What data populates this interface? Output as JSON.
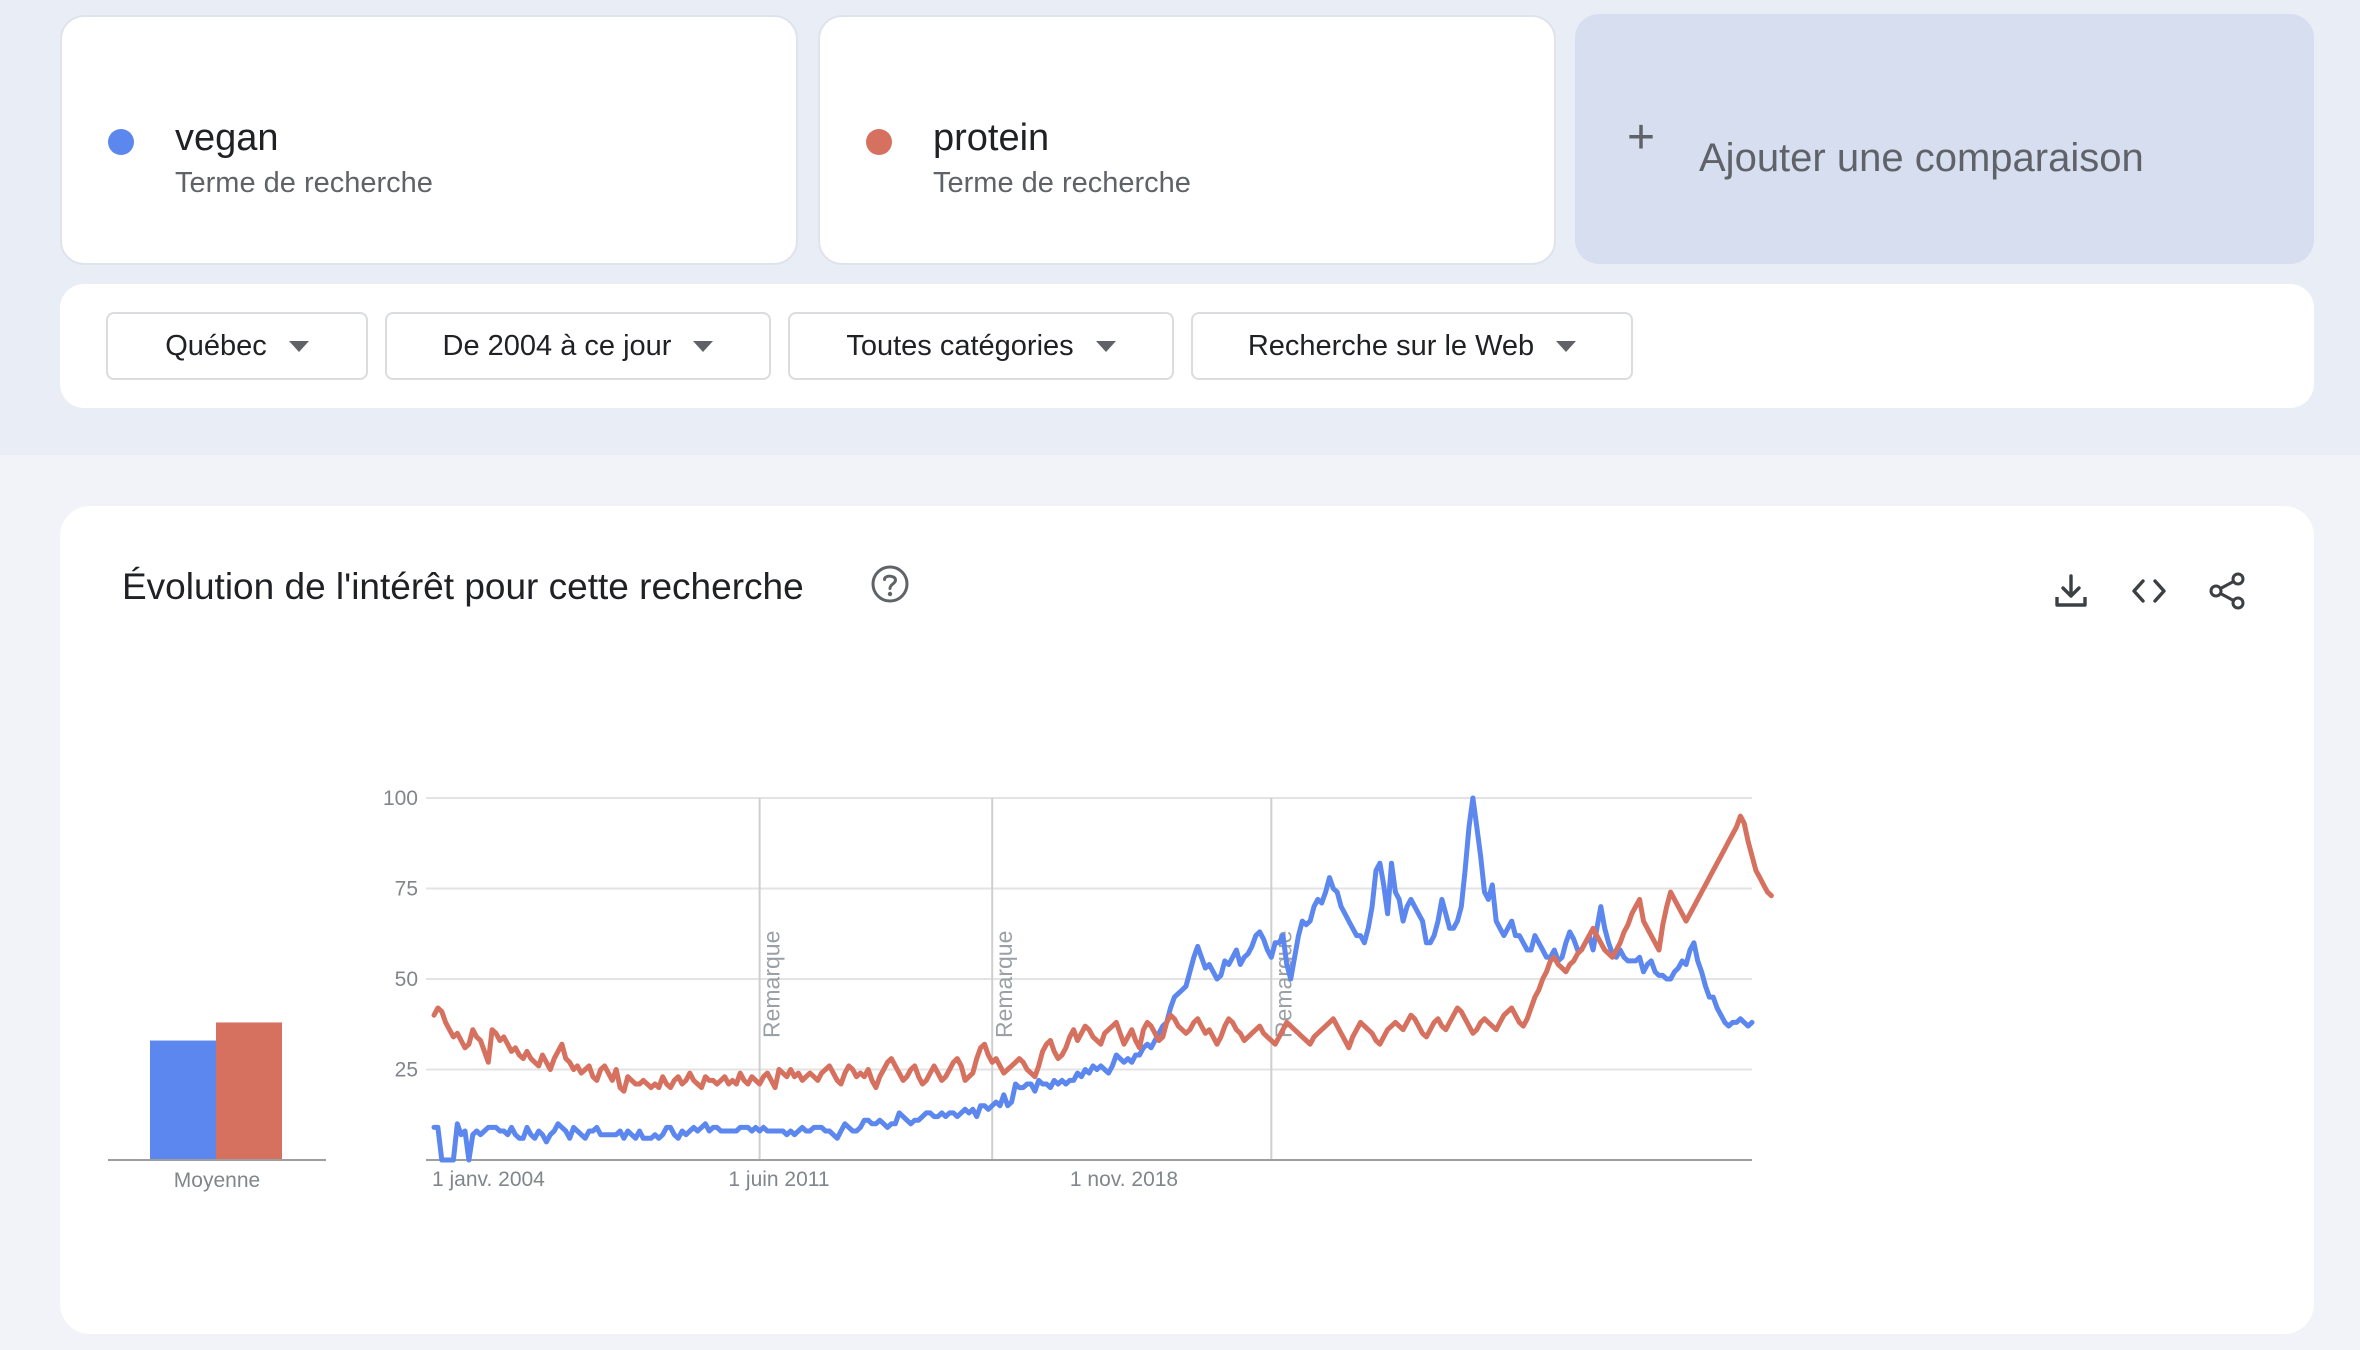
{
  "terms": [
    {
      "name": "vegan",
      "subtitle": "Terme de recherche",
      "color": "#5b87ef"
    },
    {
      "name": "protein",
      "subtitle": "Terme de recherche",
      "color": "#d6705f"
    }
  ],
  "add_comparison": {
    "icon": "plus-icon",
    "label": "Ajouter une comparaison"
  },
  "filters": [
    {
      "label": "Québec"
    },
    {
      "label": "De 2004 à ce jour"
    },
    {
      "label": "Toutes catégories"
    },
    {
      "label": "Recherche sur le Web"
    }
  ],
  "panel": {
    "title": "Évolution de l'intérêt pour cette recherche",
    "icons": [
      "help-icon",
      "download-icon",
      "embed-icon",
      "share-icon"
    ]
  },
  "chart_data": [
    {
      "type": "bar",
      "categories": [
        "Moyenne"
      ],
      "series": [
        {
          "name": "vegan",
          "values": [
            33
          ]
        },
        {
          "name": "protein",
          "values": [
            38
          ]
        }
      ],
      "ylim": [
        0,
        100
      ]
    },
    {
      "type": "line",
      "x_start": "2004-01",
      "x_step": "month",
      "x_tick_labels": [
        "1 janv. 2004",
        "1 juin 2011",
        "1 nov. 2018"
      ],
      "y_tick_labels": [
        "25",
        "50",
        "75",
        "100"
      ],
      "ylim": [
        0,
        100
      ],
      "grid": true,
      "annotations": [
        {
          "label": "Remarque",
          "date": "2011-01"
        },
        {
          "label": "Remarque",
          "date": "2016-01"
        },
        {
          "label": "Remarque",
          "date": "2022-01"
        }
      ],
      "series": [
        {
          "name": "vegan",
          "color": "#5b87ef",
          "values": [
            9,
            9,
            0,
            0,
            0,
            0,
            10,
            7,
            8,
            0,
            7,
            8,
            7,
            8,
            9,
            9,
            9,
            8,
            8,
            7,
            9,
            7,
            6,
            6,
            9,
            7,
            6,
            8,
            7,
            5,
            7,
            8,
            10,
            9,
            8,
            6,
            9,
            8,
            7,
            6,
            8,
            8,
            9,
            7,
            7,
            7,
            7,
            7,
            8,
            6,
            8,
            7,
            6,
            8,
            6,
            6,
            6,
            7,
            6,
            7,
            9,
            9,
            7,
            6,
            8,
            7,
            8,
            9,
            8,
            9,
            10,
            8,
            9,
            9,
            8,
            8,
            8,
            8,
            8,
            9,
            9,
            9,
            8,
            9,
            8,
            9,
            8,
            8,
            8,
            8,
            8,
            7,
            8,
            7,
            8,
            9,
            8,
            8,
            9,
            9,
            9,
            8,
            8,
            7,
            6,
            8,
            10,
            9,
            8,
            8,
            9,
            11,
            11,
            10,
            10,
            11,
            10,
            9,
            10,
            10,
            13,
            12,
            11,
            10,
            11,
            11,
            12,
            13,
            13,
            12,
            12,
            13,
            12,
            13,
            13,
            12,
            13,
            14,
            13,
            14,
            12,
            15,
            15,
            14,
            15,
            16,
            15,
            18,
            15,
            16,
            21,
            20,
            20,
            21,
            21,
            19,
            22,
            21,
            21,
            20,
            22,
            21,
            22,
            21,
            22,
            22,
            24,
            23,
            25,
            24,
            26,
            25,
            26,
            25,
            24,
            26,
            29,
            28,
            27,
            28,
            27,
            29,
            29,
            31,
            32,
            31,
            33,
            35,
            37,
            38,
            42,
            45,
            46,
            47,
            48,
            52,
            56,
            59,
            56,
            53,
            54,
            52,
            50,
            51,
            55,
            54,
            56,
            58,
            54,
            56,
            57,
            59,
            62,
            63,
            61,
            58,
            56,
            60,
            60,
            62,
            54,
            50,
            56,
            62,
            66,
            65,
            66,
            70,
            72,
            71,
            74,
            78,
            75,
            74,
            70,
            68,
            66,
            64,
            62,
            62,
            60,
            64,
            70,
            80,
            82,
            76,
            68,
            82,
            74,
            72,
            66,
            70,
            72,
            70,
            68,
            66,
            60,
            60,
            62,
            66,
            72,
            68,
            64,
            64,
            66,
            70,
            80,
            92,
            100,
            92,
            84,
            74,
            72,
            76,
            66,
            64,
            62,
            64,
            66,
            62,
            62,
            60,
            58,
            58,
            62,
            60,
            58,
            56,
            56,
            58,
            55,
            56,
            60,
            63,
            61,
            58,
            58,
            60,
            62,
            58,
            64,
            70,
            64,
            60,
            57,
            56,
            58,
            56,
            55,
            55,
            55,
            56,
            52,
            54,
            55,
            52,
            51,
            51,
            50,
            50,
            52,
            53,
            55,
            54,
            58,
            60,
            55,
            52,
            48,
            45,
            45,
            42,
            40,
            38,
            37,
            38,
            38,
            39,
            38,
            37,
            38
          ]
        },
        {
          "name": "protein",
          "color": "#d6705f",
          "values": [
            40,
            42,
            41,
            38,
            36,
            34,
            35,
            33,
            31,
            32,
            36,
            34,
            33,
            30,
            27,
            36,
            35,
            33,
            34,
            32,
            30,
            31,
            29,
            28,
            30,
            28,
            27,
            26,
            29,
            27,
            25,
            28,
            30,
            32,
            28,
            27,
            25,
            26,
            24,
            25,
            26,
            23,
            22,
            25,
            26,
            24,
            22,
            25,
            20,
            19,
            23,
            22,
            21,
            21,
            22,
            21,
            20,
            21,
            20,
            23,
            21,
            20,
            22,
            23,
            21,
            22,
            24,
            22,
            21,
            20,
            23,
            22,
            22,
            21,
            22,
            23,
            21,
            22,
            21,
            24,
            22,
            21,
            23,
            22,
            21,
            23,
            24,
            22,
            20,
            25,
            24,
            23,
            25,
            23,
            24,
            22,
            23,
            24,
            23,
            22,
            24,
            25,
            26,
            24,
            22,
            21,
            24,
            26,
            25,
            23,
            24,
            23,
            25,
            22,
            20,
            23,
            25,
            27,
            28,
            26,
            24,
            22,
            23,
            25,
            26,
            23,
            21,
            22,
            24,
            26,
            24,
            22,
            23,
            25,
            27,
            28,
            26,
            22,
            23,
            24,
            28,
            31,
            32,
            29,
            27,
            28,
            26,
            24,
            25,
            26,
            27,
            28,
            27,
            25,
            24,
            23,
            26,
            30,
            32,
            33,
            30,
            28,
            29,
            31,
            34,
            36,
            33,
            35,
            37,
            36,
            34,
            33,
            32,
            35,
            36,
            37,
            38,
            35,
            32,
            34,
            36,
            33,
            31,
            36,
            38,
            37,
            35,
            33,
            34,
            38,
            40,
            39,
            37,
            36,
            35,
            36,
            38,
            39,
            37,
            35,
            36,
            34,
            32,
            34,
            37,
            39,
            38,
            36,
            35,
            33,
            34,
            35,
            36,
            37,
            35,
            34,
            33,
            32,
            34,
            36,
            38,
            37,
            36,
            35,
            34,
            33,
            32,
            34,
            35,
            36,
            37,
            38,
            39,
            37,
            35,
            33,
            31,
            34,
            36,
            38,
            37,
            36,
            35,
            33,
            32,
            34,
            36,
            37,
            38,
            37,
            36,
            38,
            40,
            39,
            37,
            35,
            34,
            36,
            38,
            39,
            37,
            36,
            38,
            40,
            42,
            41,
            39,
            37,
            35,
            36,
            38,
            39,
            38,
            37,
            36,
            38,
            40,
            41,
            42,
            40,
            38,
            37,
            39,
            42,
            45,
            47,
            50,
            52,
            55,
            56,
            54,
            53,
            52,
            54,
            55,
            57,
            58,
            60,
            62,
            64,
            62,
            60,
            58,
            57,
            56,
            58,
            60,
            63,
            65,
            68,
            70,
            72,
            66,
            64,
            62,
            60,
            58,
            65,
            70,
            74,
            72,
            70,
            68,
            66,
            68,
            70,
            72,
            74,
            76,
            78,
            80,
            82,
            84,
            86,
            88,
            90,
            92,
            95,
            93,
            88,
            84,
            80,
            78,
            76,
            74,
            73
          ]
        }
      ]
    }
  ]
}
